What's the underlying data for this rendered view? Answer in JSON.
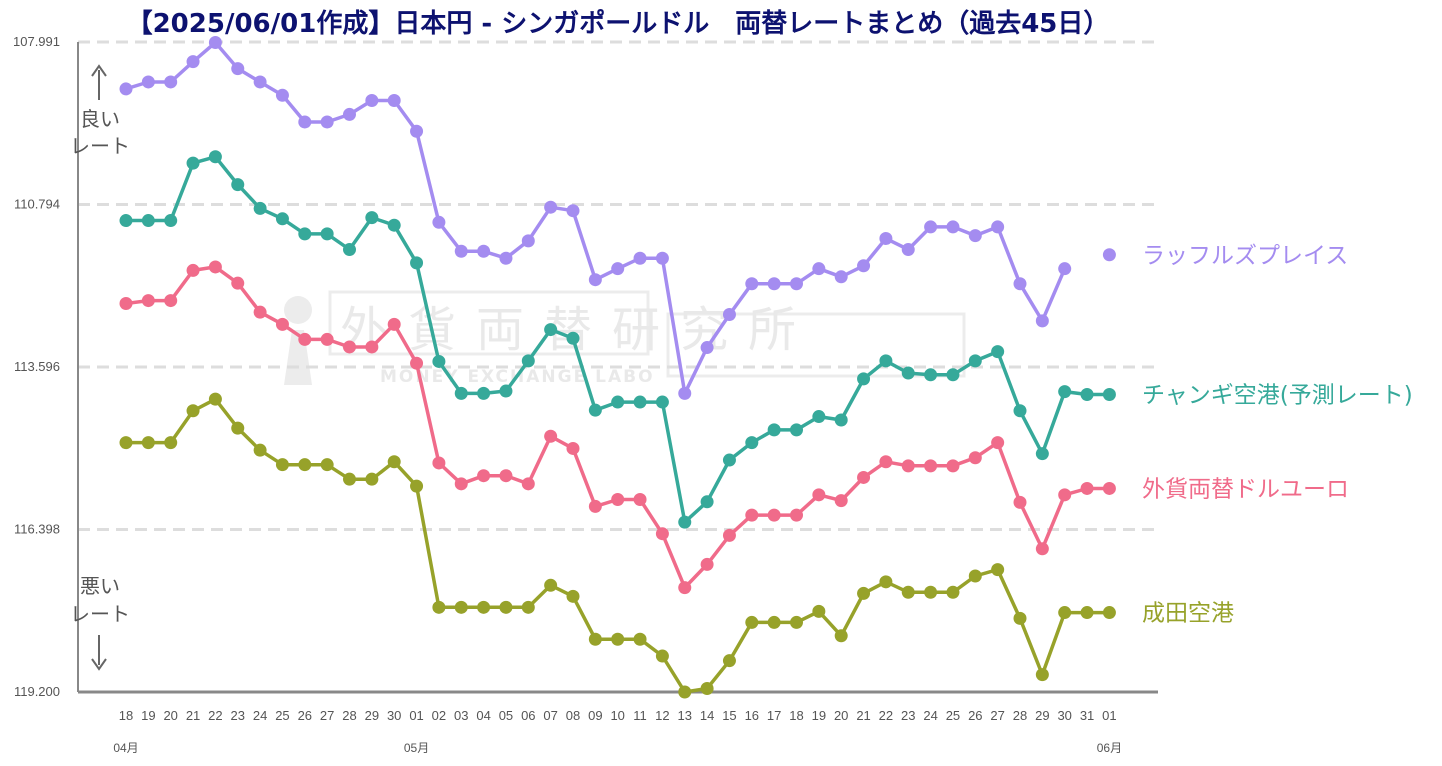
{
  "chart_data": {
    "type": "line",
    "title": "【2025/06/01作成】日本円 - シンガポールドル　両替レートまとめ（過去45日）",
    "y_axis": {
      "reversed": true,
      "ylim": [
        107.991,
        119.2
      ],
      "ticks": [
        "107.991",
        "110.794",
        "113.596",
        "116.398",
        "119.200"
      ],
      "grid": "dashed"
    },
    "categories": [
      "18",
      "19",
      "20",
      "21",
      "22",
      "23",
      "24",
      "25",
      "26",
      "27",
      "28",
      "29",
      "30",
      "01",
      "02",
      "03",
      "04",
      "05",
      "06",
      "07",
      "08",
      "09",
      "10",
      "11",
      "12",
      "13",
      "14",
      "15",
      "16",
      "17",
      "18",
      "19",
      "20",
      "21",
      "22",
      "23",
      "24",
      "25",
      "26",
      "27",
      "28",
      "29",
      "30",
      "31",
      "01"
    ],
    "month_labels": [
      {
        "index": 0,
        "label": "04月"
      },
      {
        "index": 13,
        "label": "05月"
      },
      {
        "index": 44,
        "label": "06月"
      }
    ],
    "better_label": [
      "良い",
      "レート"
    ],
    "worse_label": [
      "悪い",
      "レート"
    ],
    "watermark": {
      "main": "外貨両替研究所",
      "sub": "MONEY EXCHANGE LABO"
    },
    "series": [
      {
        "name": "ラッフルズプレイス",
        "color": "#a48cf0",
        "values": [
          108.8,
          108.68,
          108.68,
          108.33,
          108.0,
          108.45,
          108.68,
          108.91,
          109.37,
          109.37,
          109.24,
          109.0,
          109.0,
          109.53,
          111.1,
          111.6,
          111.6,
          111.72,
          111.42,
          110.84,
          110.9,
          112.09,
          111.9,
          111.72,
          111.72,
          114.05,
          113.26,
          112.69,
          112.16,
          112.16,
          112.16,
          111.9,
          112.04,
          111.85,
          111.38,
          111.57,
          111.18,
          111.18,
          111.33,
          111.18,
          112.16,
          112.8,
          111.9,
          null,
          111.66
        ]
      },
      {
        "name": "チャンギ空港(予測レート)",
        "color": "#36a99a",
        "values": [
          111.07,
          111.07,
          111.07,
          110.08,
          109.97,
          110.45,
          110.86,
          111.04,
          111.3,
          111.3,
          111.57,
          111.02,
          111.15,
          111.8,
          113.5,
          114.05,
          114.05,
          114.01,
          113.49,
          112.95,
          113.1,
          114.34,
          114.2,
          114.2,
          114.2,
          116.27,
          115.92,
          115.2,
          114.9,
          114.68,
          114.68,
          114.45,
          114.51,
          113.8,
          113.49,
          113.7,
          113.73,
          113.73,
          113.49,
          113.33,
          114.35,
          115.09,
          114.02,
          114.07,
          114.07
        ]
      },
      {
        "name": "外貨両替ドルユーロ",
        "color": "#f06b8a",
        "values": [
          112.5,
          112.45,
          112.45,
          111.93,
          111.87,
          112.15,
          112.65,
          112.86,
          113.12,
          113.12,
          113.25,
          113.25,
          112.86,
          113.53,
          115.25,
          115.61,
          115.47,
          115.47,
          115.61,
          114.79,
          115.0,
          116.0,
          115.88,
          115.88,
          116.47,
          117.4,
          117.0,
          116.5,
          116.15,
          116.15,
          116.15,
          115.8,
          115.9,
          115.5,
          115.23,
          115.3,
          115.3,
          115.3,
          115.16,
          114.9,
          115.93,
          116.73,
          115.8,
          115.69,
          115.69
        ]
      },
      {
        "name": "成田空港",
        "color": "#97a22a",
        "values": [
          114.9,
          114.9,
          114.9,
          114.35,
          114.15,
          114.65,
          115.03,
          115.28,
          115.28,
          115.28,
          115.53,
          115.53,
          115.23,
          115.65,
          117.74,
          117.74,
          117.74,
          117.74,
          117.74,
          117.36,
          117.55,
          118.29,
          118.29,
          118.29,
          118.58,
          119.2,
          119.14,
          118.66,
          118.0,
          118.0,
          118.0,
          117.81,
          118.23,
          117.5,
          117.3,
          117.48,
          117.48,
          117.48,
          117.2,
          117.09,
          117.93,
          118.9,
          117.83,
          117.83,
          117.83
        ]
      }
    ]
  }
}
